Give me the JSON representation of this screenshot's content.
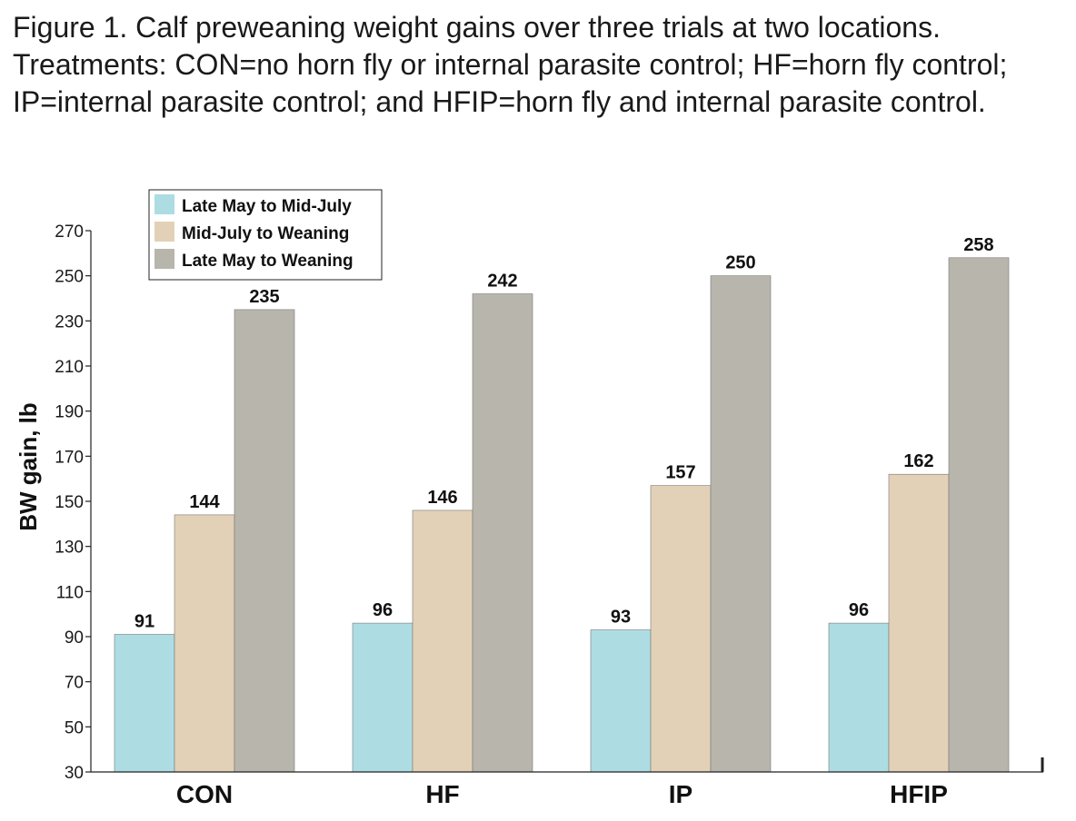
{
  "caption": "Figure 1. Calf preweaning weight gains over three trials at two locations. Treatments: CON=no horn fly or internal parasite control; HF=horn fly control; IP=internal parasite control; and HFIP=horn fly and internal parasite control.",
  "chart_data": {
    "type": "bar",
    "title": "",
    "xlabel": "",
    "ylabel": "BW gain, lb",
    "ylim": [
      30,
      270
    ],
    "yticks": [
      30,
      50,
      70,
      90,
      110,
      130,
      150,
      170,
      190,
      210,
      230,
      250,
      270
    ],
    "grid": false,
    "legend_position": "top-left",
    "categories": [
      "CON",
      "HF",
      "IP",
      "HFIP"
    ],
    "series": [
      {
        "name": "Late May to Mid-July",
        "color": "#addde3",
        "values": [
          91,
          96,
          93,
          96
        ]
      },
      {
        "name": "Mid-July to Weaning",
        "color": "#e3d1b7",
        "values": [
          144,
          146,
          157,
          162
        ]
      },
      {
        "name": "Late May to Weaning",
        "color": "#b8b5ac",
        "values": [
          235,
          242,
          250,
          258
        ]
      }
    ]
  }
}
